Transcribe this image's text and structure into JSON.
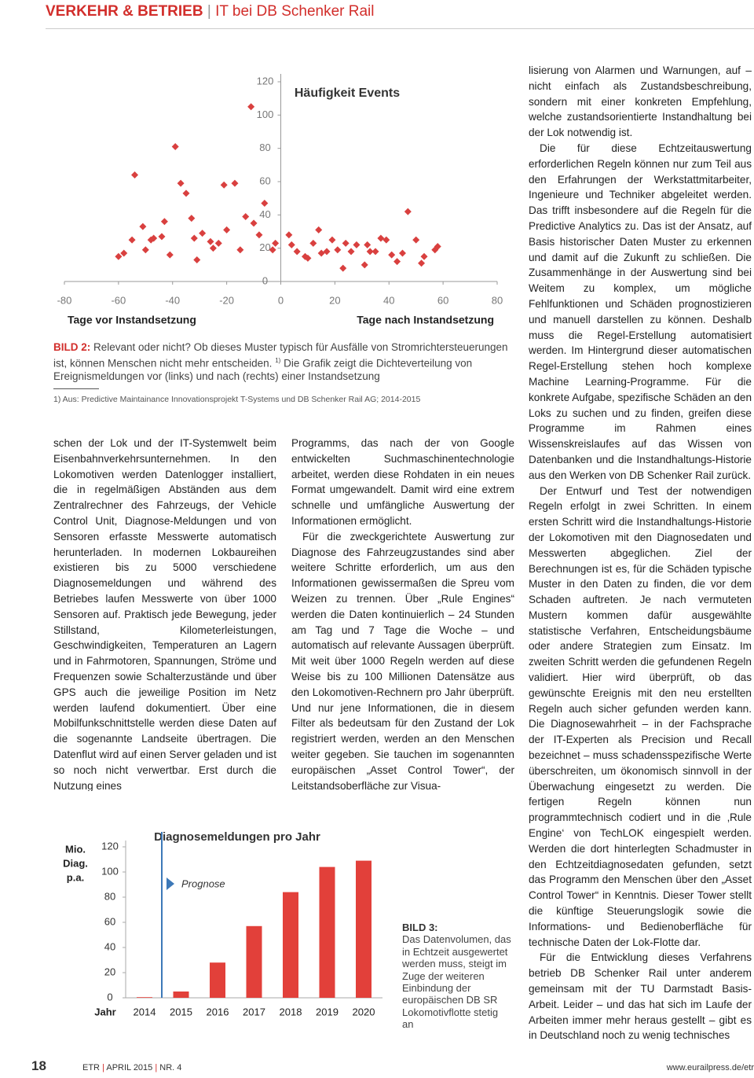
{
  "header": {
    "section": "VERKEHR & BETRIEB",
    "topic": "IT bei DB Schenker Rail"
  },
  "chart_data": [
    {
      "type": "scatter",
      "title": "Häufigkeit Events",
      "x_label_left": "Tage vor Instandsetzung",
      "x_label_right": "Tage nach Instandsetzung",
      "color": "#d9403f",
      "x": [
        -60,
        -58,
        -55,
        -54,
        -51,
        -50,
        -48,
        -47,
        -44,
        -43,
        -41,
        -39,
        -37,
        -35,
        -33,
        -32,
        -31,
        -29,
        -26,
        -25,
        -23,
        -21,
        -20,
        -17,
        -15,
        -13,
        -11,
        -10,
        -8,
        -6,
        -3,
        -2,
        3,
        4,
        6,
        9,
        10,
        12,
        14,
        15,
        17,
        19,
        21,
        23,
        24,
        26,
        28,
        31,
        32,
        33,
        35,
        37,
        39,
        41,
        43,
        45,
        47,
        50,
        52,
        53,
        57,
        58
      ],
      "values": [
        15,
        17,
        25,
        64,
        33,
        19,
        25,
        26,
        27,
        36,
        16,
        81,
        59,
        53,
        38,
        26,
        13,
        29,
        24,
        20,
        23,
        58,
        31,
        59,
        19,
        39,
        105,
        35,
        28,
        47,
        19,
        23,
        28,
        22,
        18,
        15,
        14,
        23,
        31,
        17,
        18,
        25,
        19,
        8,
        23,
        18,
        22,
        10,
        22,
        18,
        18,
        26,
        25,
        16,
        12,
        17,
        42,
        25,
        11,
        15,
        19,
        21
      ],
      "xlim": [
        -80,
        80
      ],
      "xticks": [
        -80,
        -60,
        -40,
        -20,
        0,
        20,
        40,
        60,
        80
      ],
      "ylim": [
        0,
        120
      ],
      "yticks": [
        0,
        20,
        40,
        60,
        80,
        100,
        120
      ]
    },
    {
      "type": "bar",
      "title": "Diagnosemeldungen pro Jahr",
      "y_label": [
        "Mio.",
        "Diag.",
        "p.a."
      ],
      "x_label": "Jahr",
      "annotation": "Prognose",
      "color": "#e2403a",
      "categories": [
        "2014",
        "2015",
        "2016",
        "2017",
        "2018",
        "2019",
        "2020"
      ],
      "values": [
        0.5,
        5,
        28,
        57,
        84,
        104,
        109
      ],
      "ylim": [
        0,
        120
      ],
      "yticks": [
        0,
        20,
        40,
        60,
        80,
        100,
        120
      ]
    }
  ],
  "figure2": {
    "label": "BILD 2:",
    "caption_a": "Relevant oder nicht? Ob dieses Muster typisch für Ausfälle von Stromrichtersteuerungen ist, können Menschen nicht mehr entscheiden.",
    "note_ref": "1)",
    "caption_b": "Die Grafik zeigt die Dichteverteilung von Ereignismeldungen vor (links) und nach (rechts) einer Instandsetzung",
    "footnote": "1) Aus: Predictive Maintainance Innovationsprojekt T-Systems und DB Schenker Rail AG; 2014-2015"
  },
  "figure3": {
    "label": "BILD 3:",
    "caption": "Das Datenvolumen, das in Echtzeit ausgewertet werden muss, steigt im Zuge der weiteren Einbindung der europäischen DB SR Lokomotivflotte stetig an"
  },
  "columns": [
    [
      "schen der Lok und der IT-Systemwelt beim Eisenbahnverkehrsunternehmen. In den Lokomotiven werden Datenlogger installiert, die in regelmäßigen Abständen aus dem Zentralrechner des Fahrzeugs, der Vehicle Control Unit, Diagnose-Meldungen und von Sensoren erfasste Messwerte automatisch herunterladen. In modernen Lokbaureihen existieren bis zu 5000 verschiedene Diagnosemeldungen und während des Betriebes laufen Messwerte von über 1000 Sensoren auf. Praktisch jede Bewegung, jeder Stillstand, Kilometerleistungen, Geschwindigkeiten, Temperaturen an Lagern und in Fahrmotoren, Spannungen, Ströme und Frequenzen sowie Schalterzustände und über GPS auch die jeweilige Position im Netz werden laufend dokumentiert. Über eine Mobilfunkschnittstelle werden diese Daten auf die sogenannte Landseite übertragen. Die Datenflut wird auf einen Server geladen und ist so noch nicht verwertbar. Erst durch die Nutzung eines"
    ],
    [
      "Programms, das nach der von Google entwickelten Suchmaschinentechnologie arbeitet, werden diese Rohdaten in ein neues Format umgewandelt. Damit wird eine extrem schnelle und umfängliche Auswertung der Informationen ermöglicht.",
      "Für die zweckgerichtete Auswertung zur Diagnose des Fahrzeugzustandes sind aber weitere Schritte erforderlich, um aus den Informationen gewissermaßen die Spreu vom Weizen zu trennen. Über „Rule Engines“ werden die Daten kontinuierlich – 24 Stunden am Tag und 7 Tage die Woche – und automatisch auf relevante Aussagen überprüft. Mit weit über 1000 Regeln werden auf diese Weise bis zu 100 Millionen Datensätze aus den Lokomotiven-Rechnern pro Jahr überprüft. Und nur jene Informationen, die in diesem Filter als bedeutsam für den Zustand der Lok registriert werden, werden an den Menschen weiter gegeben. Sie tauchen im sogenannten europäischen „Asset Control Tower“, der Leitstandsoberfläche zur Visua-"
    ],
    [
      "lisierung von Alarmen und Warnungen, auf – nicht einfach als Zustandsbeschreibung, sondern mit einer konkreten Empfehlung, welche zustandsorientierte Instandhaltung bei der Lok notwendig ist.",
      "Die für diese Echtzeitauswertung erforderlichen Regeln können nur zum Teil aus den Erfahrungen der Werkstattmitarbeiter, Ingenieure und Techniker abgeleitet werden. Das trifft insbesondere auf die Regeln für die Predictive Analytics zu. Das ist der Ansatz, auf Basis historischer Daten Muster zu erkennen und damit auf die Zukunft zu schließen. Die Zusammenhänge in der Auswertung sind bei Weitem zu komplex, um mögliche Fehlfunktionen und Schäden prognostizieren und manuell darstellen zu können. Deshalb muss die Regel-Erstellung automatisiert werden. Im Hintergrund dieser automatischen Regel-Erstellung stehen hoch komplexe Machine Learning-Programme. Für die konkrete Aufgabe, spezifische Schäden an den Loks zu suchen und zu finden, greifen diese Programme im Rahmen eines Wissenskreislaufes auf das Wissen von Datenbanken und die Instandhaltungs-Historie aus den Werken von DB Schenker Rail zurück.",
      "Der Entwurf und Test der notwendigen Regeln erfolgt in zwei Schritten. In einem ersten Schritt wird die Instandhaltungs-Historie der Lokomotiven mit den Diagnosedaten und Messwerten abgeglichen. Ziel der Berechnungen ist es, für die Schäden typische Muster in den Daten zu finden, die vor dem Schaden auftreten. Je nach vermuteten Mustern kommen dafür ausgewählte statistische Verfahren, Entscheidungsbäume oder andere Strategien zum Einsatz. Im zweiten Schritt werden die gefundenen Regeln validiert. Hier wird überprüft, ob das gewünschte Ereignis mit den neu erstellten Regeln auch sicher gefunden werden kann. Die Diagnosewahrheit – in der Fachsprache der IT-Experten als Precision und Recall bezeichnet – muss schadensspezifische Werte überschreiten, um ökonomisch sinnvoll in der Überwachung eingesetzt zu werden. Die fertigen Regeln können nun programmtechnisch codiert und in die ‚Rule Engine‘ von TechLOK eingespielt werden. Werden die dort hinterlegten Schadmuster in den Echtzeitdiagnosedaten gefunden, setzt das Programm den Menschen über den „Asset Control Tower“ in Kenntnis. Dieser Tower stellt die künftige Steuerungslogik sowie die Informations- und Bedienoberfläche für technische Daten der Lok-Flotte dar.",
      "Für die Entwicklung dieses Verfahrens betrieb DB Schenker Rail unter anderem gemeinsam mit der TU Darmstadt Basis-Arbeit. Leider – und das hat sich im Laufe der Arbeiten immer mehr heraus gestellt – gibt es in Deutschland noch zu wenig technisches"
    ]
  ],
  "footer": {
    "page": "18",
    "journal": "ETR",
    "issue": "APRIL 2015",
    "number": "NR. 4",
    "url": "www.eurailpress.de/etr"
  }
}
